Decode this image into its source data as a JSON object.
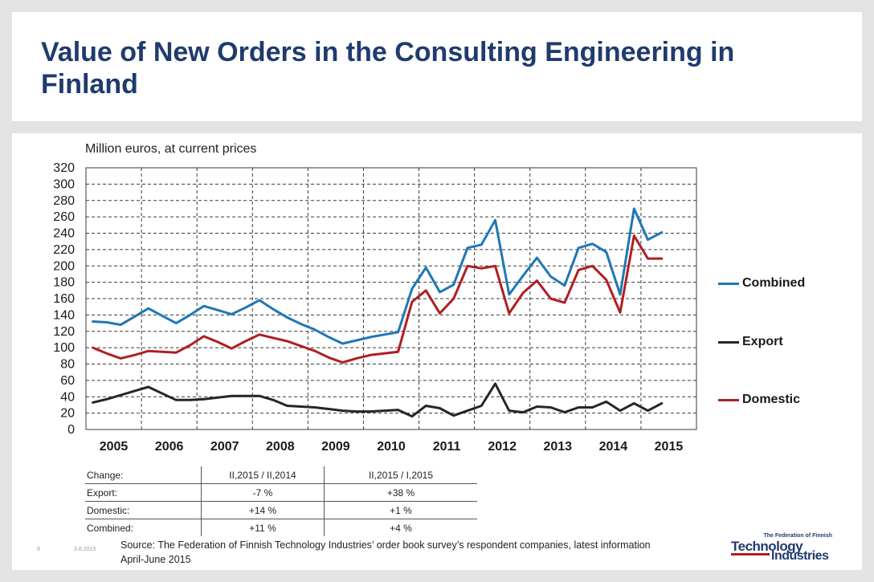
{
  "title": "Value of New Orders in the Consulting Engineering in Finland",
  "unit_label": "Million euros, at current prices",
  "chart_data": {
    "type": "line",
    "ylim": [
      0,
      320
    ],
    "yticks": [
      0,
      20,
      40,
      60,
      80,
      100,
      120,
      140,
      160,
      180,
      200,
      220,
      240,
      260,
      280,
      300,
      320
    ],
    "year_labels": [
      "2005",
      "2006",
      "2007",
      "2008",
      "2009",
      "2010",
      "2011",
      "2012",
      "2013",
      "2014",
      "2015"
    ],
    "quarters_per_year": 4,
    "grid": true,
    "legend_position": "right",
    "series": [
      {
        "name": "Combined",
        "color": "#1f78b4",
        "values": [
          132,
          131,
          128,
          138,
          148,
          139,
          130,
          140,
          151,
          146,
          141,
          149,
          158,
          147,
          137,
          129,
          122,
          113,
          105,
          109,
          113,
          116,
          119,
          172,
          198,
          168,
          177,
          222,
          226,
          256,
          165,
          188,
          210,
          187,
          176,
          222,
          227,
          217,
          165,
          270,
          232,
          241
        ]
      },
      {
        "name": "Export",
        "color": "#262626",
        "values": [
          33,
          37,
          42,
          47,
          52,
          44,
          36,
          36,
          37,
          39,
          41,
          41,
          41,
          36,
          29,
          28,
          27,
          25,
          23,
          22,
          22,
          23,
          24,
          16,
          29,
          26,
          17,
          23,
          29,
          56,
          23,
          21,
          28,
          27,
          21,
          27,
          27,
          34,
          23,
          32,
          23,
          32
        ]
      },
      {
        "name": "Domestic",
        "color": "#b01e23",
        "values": [
          100,
          93,
          87,
          91,
          96,
          95,
          94,
          103,
          114,
          107,
          99,
          108,
          116,
          112,
          108,
          102,
          96,
          88,
          82,
          87,
          91,
          93,
          95,
          156,
          170,
          142,
          160,
          200,
          197,
          200,
          142,
          167,
          182,
          160,
          155,
          195,
          200,
          183,
          143,
          237,
          209,
          209
        ]
      }
    ]
  },
  "legend": [
    {
      "label": "Combined",
      "color": "#1f78b4"
    },
    {
      "label": "Export",
      "color": "#262626"
    },
    {
      "label": "Domestic",
      "color": "#b01e23"
    }
  ],
  "change_table": {
    "rows": [
      [
        "Change:",
        "II,2015 / II,2014",
        "II,2015 / I,2015"
      ],
      [
        "Export:",
        "-7 %",
        "+38 %"
      ],
      [
        "Domestic:",
        "+14 %",
        "+1 %"
      ],
      [
        "Combined:",
        "+11 %",
        "+4 %"
      ]
    ]
  },
  "source": "Source: The Federation of Finnish Technology Industries’ order book survey’s respondent companies, latest information April-June 2015",
  "page_number": "8",
  "date": "3.8.2015",
  "logo": {
    "top": "The Federation of Finnish",
    "line1": "Technology",
    "line2": "Industries"
  }
}
